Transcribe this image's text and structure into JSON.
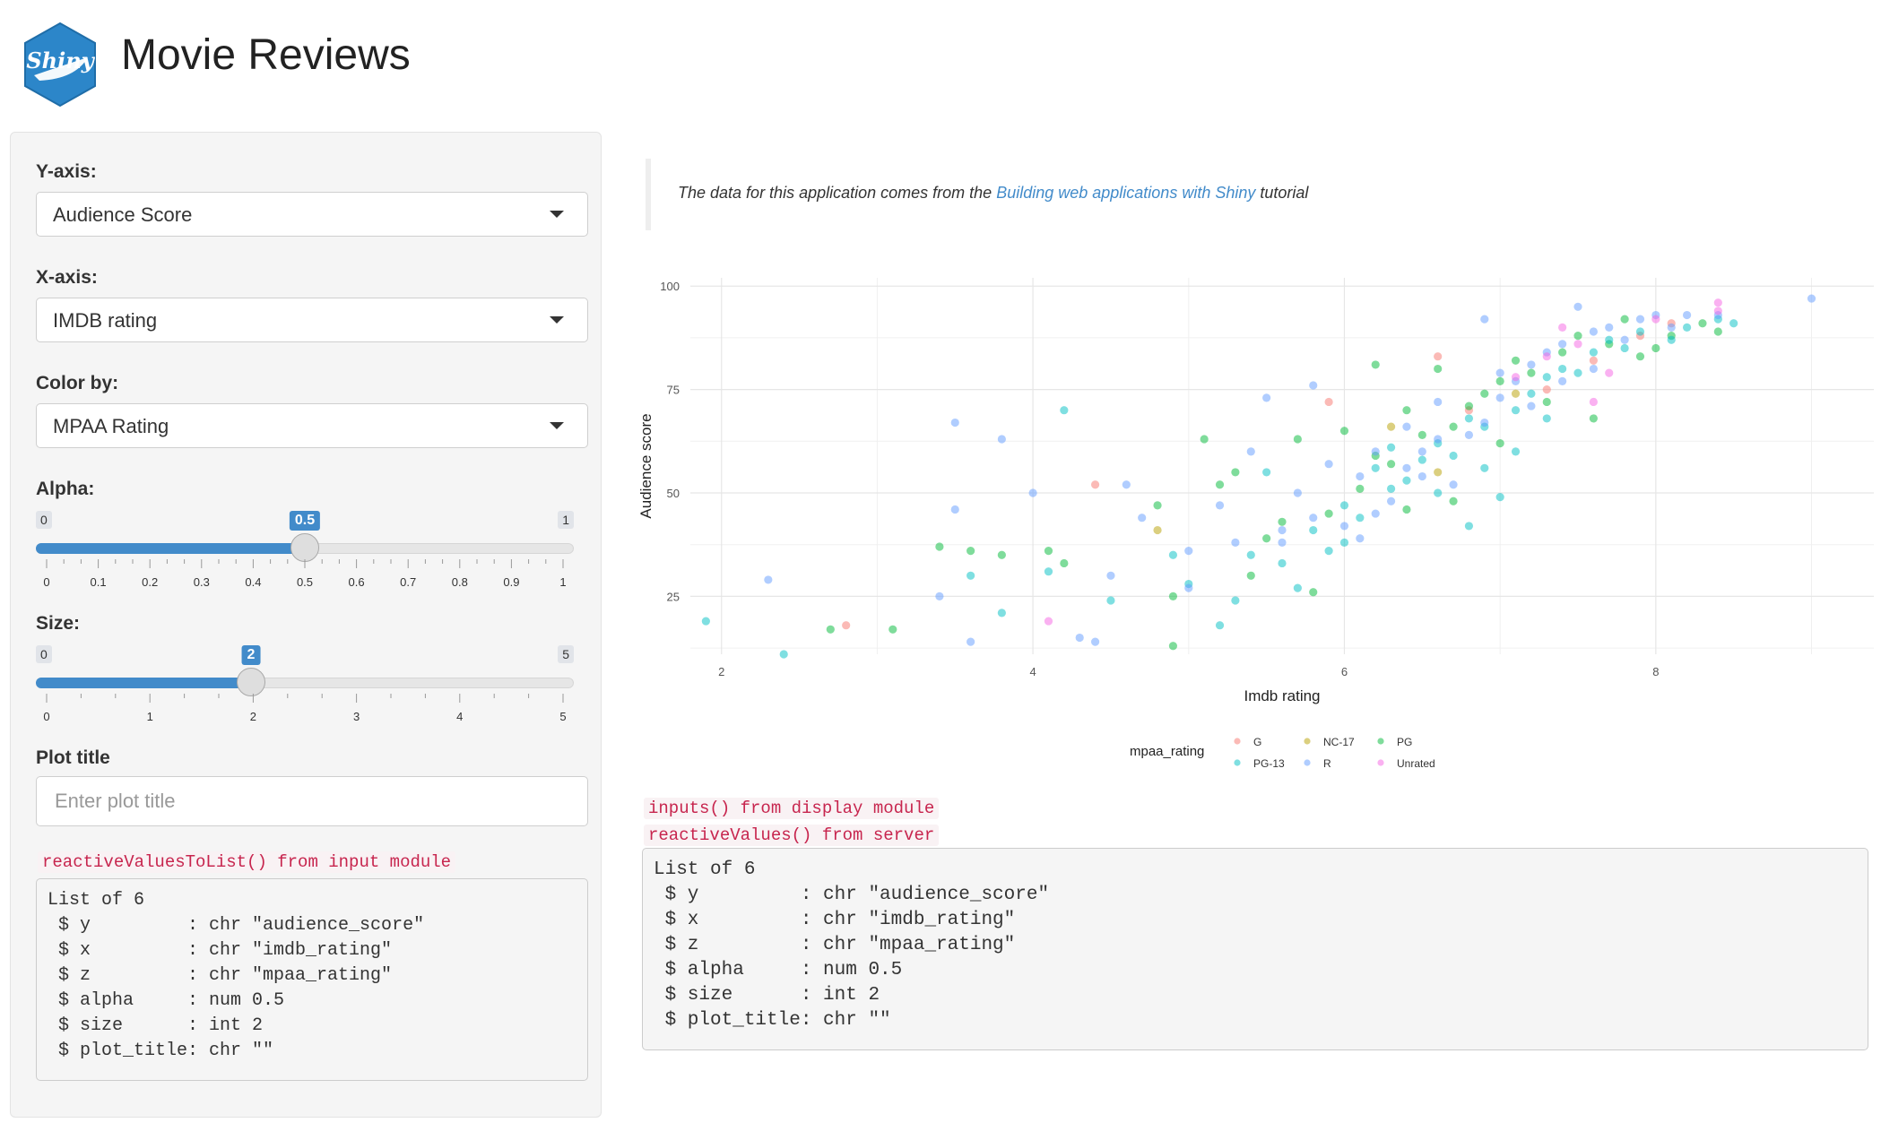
{
  "header": {
    "logo_text": "Shiny",
    "title": "Movie Reviews"
  },
  "sidebar": {
    "y_axis": {
      "label": "Y-axis:",
      "selected": "Audience Score"
    },
    "x_axis": {
      "label": "X-axis:",
      "selected": "IMDB rating"
    },
    "color_by": {
      "label": "Color by:",
      "selected": "MPAA Rating"
    },
    "alpha": {
      "label": "Alpha:",
      "min": "0",
      "max": "1",
      "value": "0.5",
      "fraction": 0.5,
      "ticks": [
        "0",
        "0.1",
        "0.2",
        "0.3",
        "0.4",
        "0.5",
        "0.6",
        "0.7",
        "0.8",
        "0.9",
        "1"
      ]
    },
    "size": {
      "label": "Size:",
      "min": "0",
      "max": "5",
      "value": "2",
      "fraction": 0.4,
      "ticks": [
        "0",
        "1",
        "2",
        "3",
        "4",
        "5"
      ]
    },
    "plot_title": {
      "label": "Plot title",
      "value": "",
      "placeholder": "Enter plot title"
    },
    "module_label": "reactiveValuesToList() from input module",
    "module_output": "List of 6\n $ y         : chr \"audience_score\"\n $ x         : chr \"imdb_rating\"\n $ z         : chr \"mpaa_rating\"\n $ alpha     : num 0.5\n $ size      : int 2\n $ plot_title: chr \"\""
  },
  "main": {
    "note_prefix": "The data for this application comes from the ",
    "note_link": "Building web applications with Shiny",
    "note_suffix": " tutorial",
    "display_label": "inputs() from display module",
    "server_label": "reactiveValues() from server",
    "server_output": "List of 6\n $ y         : chr \"audience_score\"\n $ x         : chr \"imdb_rating\"\n $ z         : chr \"mpaa_rating\"\n $ alpha     : num 0.5\n $ size      : int 2\n $ plot_title: chr \"\""
  },
  "chart_data": {
    "type": "scatter",
    "title": "",
    "xlabel": "Imdb rating",
    "ylabel": "Audience score",
    "xlim": [
      1.8,
      9.4
    ],
    "ylim": [
      11,
      102
    ],
    "xticks": [
      "2",
      "4",
      "6",
      "8"
    ],
    "yticks": [
      "25",
      "50",
      "75",
      "100"
    ],
    "grid": true,
    "legend_title": "mpaa_rating",
    "legend_position": "bottom",
    "point_alpha": 0.5,
    "series": [
      {
        "name": "G",
        "color": "#F8766D",
        "points": [
          [
            2.8,
            18
          ],
          [
            4.4,
            52
          ],
          [
            5.9,
            72
          ],
          [
            6.6,
            83
          ],
          [
            6.8,
            70
          ],
          [
            7.6,
            82
          ],
          [
            7.9,
            88
          ],
          [
            8.1,
            91
          ],
          [
            7.3,
            75
          ]
        ]
      },
      {
        "name": "NC-17",
        "color": "#B79F00",
        "points": [
          [
            4.8,
            41
          ],
          [
            6.3,
            66
          ],
          [
            6.6,
            55
          ],
          [
            7.1,
            74
          ]
        ]
      },
      {
        "name": "PG",
        "color": "#00BA38",
        "points": [
          [
            2.7,
            17
          ],
          [
            3.1,
            17
          ],
          [
            3.4,
            37
          ],
          [
            3.6,
            36
          ],
          [
            3.8,
            35
          ],
          [
            4.1,
            36
          ],
          [
            4.2,
            33
          ],
          [
            4.8,
            47
          ],
          [
            4.9,
            13
          ],
          [
            5.1,
            63
          ],
          [
            5.2,
            52
          ],
          [
            5.3,
            55
          ],
          [
            5.5,
            39
          ],
          [
            5.7,
            63
          ],
          [
            5.8,
            26
          ],
          [
            6.0,
            65
          ],
          [
            6.2,
            81
          ],
          [
            6.1,
            51
          ],
          [
            6.3,
            57
          ],
          [
            6.4,
            70
          ],
          [
            6.5,
            64
          ],
          [
            6.6,
            80
          ],
          [
            6.7,
            66
          ],
          [
            6.8,
            71
          ],
          [
            6.9,
            74
          ],
          [
            7.0,
            77
          ],
          [
            7.1,
            82
          ],
          [
            7.2,
            79
          ],
          [
            7.3,
            72
          ],
          [
            7.4,
            84
          ],
          [
            7.5,
            88
          ],
          [
            7.7,
            86
          ],
          [
            7.8,
            92
          ],
          [
            7.9,
            83
          ],
          [
            8.1,
            88
          ],
          [
            8.3,
            91
          ],
          [
            8.4,
            89
          ],
          [
            4.9,
            25
          ],
          [
            5.4,
            30
          ],
          [
            5.6,
            43
          ],
          [
            5.9,
            45
          ],
          [
            6.2,
            59
          ],
          [
            6.4,
            46
          ],
          [
            6.7,
            48
          ],
          [
            7.0,
            62
          ],
          [
            7.6,
            68
          ],
          [
            8.0,
            85
          ]
        ]
      },
      {
        "name": "PG-13",
        "color": "#00BFC4",
        "points": [
          [
            1.9,
            19
          ],
          [
            2.4,
            11
          ],
          [
            3.6,
            30
          ],
          [
            3.8,
            21
          ],
          [
            4.1,
            31
          ],
          [
            4.2,
            70
          ],
          [
            4.5,
            24
          ],
          [
            4.9,
            35
          ],
          [
            5.0,
            28
          ],
          [
            5.2,
            18
          ],
          [
            5.3,
            24
          ],
          [
            5.5,
            55
          ],
          [
            5.6,
            33
          ],
          [
            5.7,
            27
          ],
          [
            5.8,
            41
          ],
          [
            6.0,
            38
          ],
          [
            6.1,
            44
          ],
          [
            6.2,
            56
          ],
          [
            6.3,
            61
          ],
          [
            6.4,
            53
          ],
          [
            6.5,
            58
          ],
          [
            6.6,
            62
          ],
          [
            6.7,
            59
          ],
          [
            6.8,
            68
          ],
          [
            6.9,
            66
          ],
          [
            7.0,
            49
          ],
          [
            7.1,
            70
          ],
          [
            7.2,
            74
          ],
          [
            7.3,
            78
          ],
          [
            7.4,
            80
          ],
          [
            7.5,
            79
          ],
          [
            7.6,
            84
          ],
          [
            7.7,
            87
          ],
          [
            7.8,
            85
          ],
          [
            7.9,
            89
          ],
          [
            8.1,
            87
          ],
          [
            8.2,
            90
          ],
          [
            8.4,
            92
          ],
          [
            8.5,
            91
          ],
          [
            6.0,
            47
          ],
          [
            6.3,
            51
          ],
          [
            5.9,
            36
          ],
          [
            6.6,
            50
          ],
          [
            6.9,
            56
          ],
          [
            7.1,
            60
          ],
          [
            7.3,
            68
          ],
          [
            5.4,
            35
          ],
          [
            6.8,
            42
          ]
        ]
      },
      {
        "name": "R",
        "color": "#619CFF",
        "points": [
          [
            2.3,
            29
          ],
          [
            3.5,
            67
          ],
          [
            3.5,
            46
          ],
          [
            3.8,
            63
          ],
          [
            3.4,
            25
          ],
          [
            3.6,
            14
          ],
          [
            4.3,
            15
          ],
          [
            4.4,
            14
          ],
          [
            4.5,
            30
          ],
          [
            4.6,
            52
          ],
          [
            4.7,
            44
          ],
          [
            5.0,
            27
          ],
          [
            5.0,
            36
          ],
          [
            5.2,
            47
          ],
          [
            5.4,
            60
          ],
          [
            5.5,
            73
          ],
          [
            5.6,
            38
          ],
          [
            5.8,
            76
          ],
          [
            5.9,
            57
          ],
          [
            6.0,
            42
          ],
          [
            6.1,
            54
          ],
          [
            6.2,
            60
          ],
          [
            6.3,
            48
          ],
          [
            6.4,
            66
          ],
          [
            6.5,
            60
          ],
          [
            6.6,
            72
          ],
          [
            6.7,
            52
          ],
          [
            6.8,
            64
          ],
          [
            6.9,
            92
          ],
          [
            7.0,
            73
          ],
          [
            7.1,
            77
          ],
          [
            7.2,
            81
          ],
          [
            7.3,
            84
          ],
          [
            7.4,
            86
          ],
          [
            7.5,
            95
          ],
          [
            7.6,
            89
          ],
          [
            7.7,
            90
          ],
          [
            7.8,
            87
          ],
          [
            7.9,
            92
          ],
          [
            8.0,
            93
          ],
          [
            8.2,
            93
          ],
          [
            8.4,
            93
          ],
          [
            9.0,
            97
          ],
          [
            5.7,
            50
          ],
          [
            5.8,
            44
          ],
          [
            6.1,
            39
          ],
          [
            6.4,
            56
          ],
          [
            6.6,
            63
          ],
          [
            6.9,
            67
          ],
          [
            7.2,
            71
          ],
          [
            7.4,
            77
          ],
          [
            5.3,
            38
          ],
          [
            5.6,
            41
          ],
          [
            6.2,
            45
          ],
          [
            6.5,
            54
          ],
          [
            7.0,
            79
          ],
          [
            7.6,
            80
          ],
          [
            8.1,
            90
          ],
          [
            4.0,
            50
          ]
        ]
      },
      {
        "name": "Unrated",
        "color": "#F564E3",
        "points": [
          [
            4.1,
            19
          ],
          [
            7.1,
            78
          ],
          [
            7.3,
            83
          ],
          [
            7.5,
            86
          ],
          [
            7.7,
            79
          ],
          [
            8.0,
            92
          ],
          [
            8.4,
            94
          ],
          [
            8.4,
            96
          ],
          [
            7.4,
            90
          ],
          [
            7.6,
            72
          ]
        ]
      }
    ]
  }
}
